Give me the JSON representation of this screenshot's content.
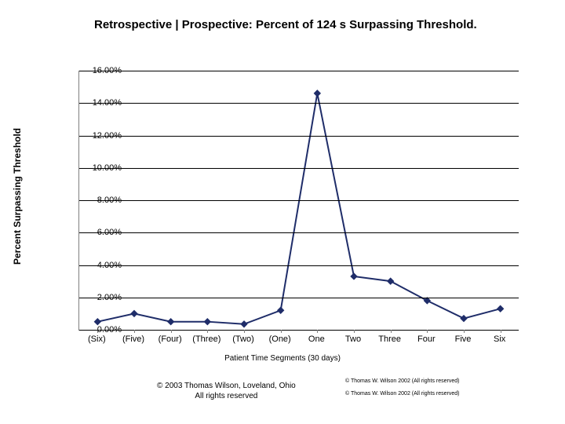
{
  "chart": {
    "type": "line",
    "title": "Retrospective | Prospective: Percent of 124 s Surpassing Threshold.",
    "ylabel": "Percent Surpassing Threshold",
    "xlabel": "Patient Time Segments (30 days)",
    "categories": [
      "(Six)",
      "(Five)",
      "(Four)",
      "(Three)",
      "(Two)",
      "(One)",
      "One",
      "Two",
      "Three",
      "Four",
      "Five",
      "Six"
    ],
    "values": [
      0.5,
      1.0,
      0.5,
      0.5,
      0.35,
      1.2,
      14.6,
      3.3,
      3.0,
      1.8,
      0.7,
      1.3
    ],
    "ylim": [
      0,
      16
    ],
    "ytick_step": 2,
    "ytick_format_suffix": ".00%",
    "line_color": "#1f2d69",
    "marker_color": "#1f2d69",
    "marker_shape": "diamond",
    "marker_size": 8,
    "grid_color": "#000000",
    "axis_color": "#7f7f7f",
    "background_color": "#ffffff",
    "title_fontsize": 15,
    "label_fontsize": 12,
    "tick_fontsize": 11
  },
  "footer": {
    "center_line1": "© 2003 Thomas Wilson, Loveland, Ohio",
    "center_line2": "All rights reserved",
    "right_line1": "© Thomas W. Wilson 2002 (All rights reserved)",
    "right_line2": "© Thomas W. Wilson 2002 (All rights reserved)"
  }
}
